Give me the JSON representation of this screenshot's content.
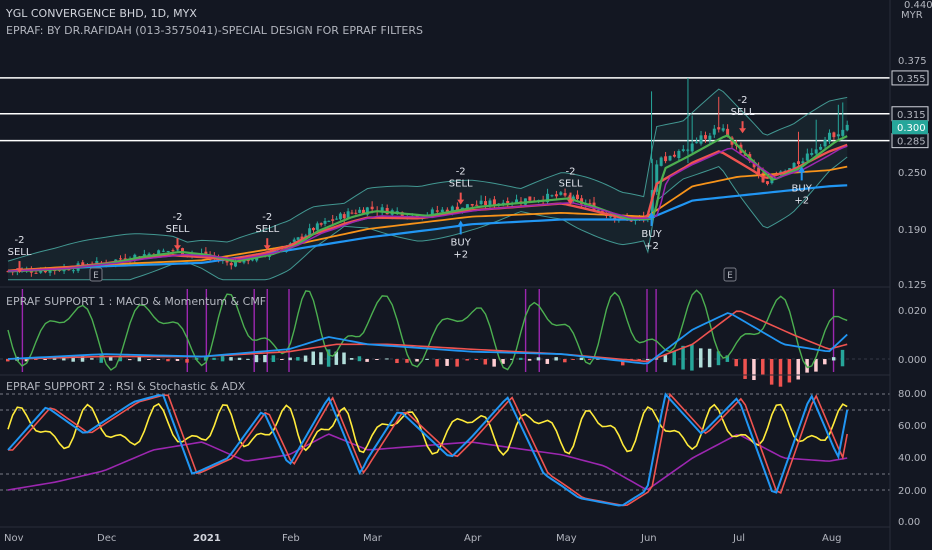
{
  "header": {
    "title": "YGL CONVERGENCE BHD, 1D, MYX",
    "indicator": "EPRAF: BY DR.RAFIDAH (013-3575041)-SPECIAL DESIGN FOR EPRAF FILTERS"
  },
  "panes": {
    "macd_title": "EPRAF SUPPORT 1 : MACD & Momentum & CMF",
    "rsi_title": "EPRAF SUPPORT 2 : RSI & Stochastic & ADX"
  },
  "price_axis": {
    "currency": "MYR",
    "top_partial": "0.440",
    "ticks": [
      "0.375",
      "0.250",
      "0.190",
      "0.125"
    ],
    "levels": [
      {
        "label": "0.355",
        "value": 0.355
      },
      {
        "label": "0.315",
        "value": 0.315
      },
      {
        "label": "0.285",
        "value": 0.285
      }
    ],
    "last_price": {
      "label": "0.300",
      "value": 0.3,
      "color": "#26a69a"
    }
  },
  "macd_axis": {
    "ticks": [
      "0.020",
      "0.000"
    ]
  },
  "rsi_axis": {
    "ticks": [
      "80.00",
      "60.00",
      "40.00",
      "20.00",
      "0.00"
    ]
  },
  "time_axis": {
    "labels": [
      {
        "text": "Nov",
        "bold": false
      },
      {
        "text": "Dec",
        "bold": false
      },
      {
        "text": "2021",
        "bold": true
      },
      {
        "text": "Feb",
        "bold": false
      },
      {
        "text": "Mar",
        "bold": false
      },
      {
        "text": "Apr",
        "bold": false
      },
      {
        "text": "May",
        "bold": false
      },
      {
        "text": "Jun",
        "bold": false
      },
      {
        "text": "Jul",
        "bold": false
      },
      {
        "text": "Aug",
        "bold": false
      }
    ]
  },
  "signals": [
    {
      "type": "sell",
      "line1": "-2",
      "line2": "SELL",
      "month_pos": 0.12,
      "price": 0.145
    },
    {
      "type": "sell",
      "line1": "-2",
      "line2": "SELL",
      "month_pos": 1.75,
      "price": 0.172
    },
    {
      "type": "sell",
      "line1": "-2",
      "line2": "SELL",
      "month_pos": 2.75,
      "price": 0.172
    },
    {
      "type": "sell",
      "line1": "-2",
      "line2": "SELL",
      "month_pos": 4.9,
      "price": 0.222
    },
    {
      "type": "sell",
      "line1": "-2",
      "line2": "SELL",
      "month_pos": 6.1,
      "price": 0.222
    },
    {
      "type": "sell",
      "line1": "-2",
      "line2": "SELL",
      "month_pos": 8.05,
      "price": 0.3
    },
    {
      "type": "buy",
      "line1": "BUY",
      "line2": "+2",
      "month_pos": 4.9,
      "price": 0.18
    },
    {
      "type": "buy",
      "line1": "BUY",
      "line2": "+2",
      "month_pos": 7.05,
      "price": 0.19
    },
    {
      "type": "buy",
      "line1": "BUY",
      "line2": "+2",
      "month_pos": 8.7,
      "price": 0.238
    }
  ],
  "earnings_markers": [
    {
      "label": "E",
      "month_pos": 1.0
    },
    {
      "label": "E",
      "month_pos": 8.0
    }
  ],
  "colors": {
    "up": "#26a69a",
    "down": "#ef5350",
    "ema_fast": "#ef5350",
    "ema_mid": "#f7931a",
    "ema_slow": "#2196f3",
    "ema_green": "#4caf50",
    "ema_purple": "#9c27b0",
    "bb": "#4db6ac",
    "rsi": "#2196f3",
    "stoch": "#ef5350",
    "adx": "#9c27b0",
    "rsi_yellow": "#ffeb3b",
    "cmf": "#4caf50",
    "mom": "#9c27b0"
  },
  "chart_data": {
    "type": "candlestick",
    "title": "YGL CONVERGENCE BHD, 1D, MYX",
    "x_range": [
      "Nov 2020",
      "Aug 2021"
    ],
    "y_range": [
      0.125,
      0.44
    ],
    "price_path": [
      [
        0.0,
        0.14
      ],
      [
        0.5,
        0.142
      ],
      [
        1.0,
        0.15
      ],
      [
        1.3,
        0.158
      ],
      [
        1.7,
        0.165
      ],
      [
        2.0,
        0.16
      ],
      [
        2.3,
        0.15
      ],
      [
        2.7,
        0.158
      ],
      [
        3.0,
        0.17
      ],
      [
        3.3,
        0.19
      ],
      [
        3.7,
        0.205
      ],
      [
        4.0,
        0.212
      ],
      [
        4.5,
        0.205
      ],
      [
        5.0,
        0.215
      ],
      [
        5.5,
        0.22
      ],
      [
        6.0,
        0.225
      ],
      [
        6.3,
        0.215
      ],
      [
        6.7,
        0.2
      ],
      [
        7.0,
        0.2
      ],
      [
        7.1,
        0.26
      ],
      [
        7.4,
        0.275
      ],
      [
        7.8,
        0.3
      ],
      [
        8.0,
        0.275
      ],
      [
        8.3,
        0.24
      ],
      [
        8.6,
        0.255
      ],
      [
        9.0,
        0.29
      ],
      [
        9.2,
        0.3
      ]
    ],
    "ema_slow_path": [
      [
        0.0,
        0.14
      ],
      [
        1.0,
        0.146
      ],
      [
        2.0,
        0.15
      ],
      [
        3.0,
        0.165
      ],
      [
        4.0,
        0.18
      ],
      [
        5.0,
        0.195
      ],
      [
        6.0,
        0.2
      ],
      [
        7.0,
        0.2
      ],
      [
        7.5,
        0.22
      ],
      [
        8.0,
        0.225
      ],
      [
        9.0,
        0.235
      ],
      [
        9.2,
        0.236
      ]
    ],
    "ema_mid_path": [
      [
        0.0,
        0.141
      ],
      [
        1.0,
        0.148
      ],
      [
        2.0,
        0.153
      ],
      [
        3.0,
        0.17
      ],
      [
        4.0,
        0.19
      ],
      [
        5.0,
        0.203
      ],
      [
        6.0,
        0.207
      ],
      [
        7.0,
        0.203
      ],
      [
        7.5,
        0.235
      ],
      [
        8.0,
        0.245
      ],
      [
        9.0,
        0.252
      ],
      [
        9.2,
        0.256
      ]
    ],
    "macd_path": [
      [
        0.0,
        0.0
      ],
      [
        1.0,
        0.002
      ],
      [
        2.0,
        0.001
      ],
      [
        3.0,
        0.004
      ],
      [
        3.5,
        0.009
      ],
      [
        4.0,
        0.006
      ],
      [
        5.0,
        0.003
      ],
      [
        6.0,
        0.002
      ],
      [
        7.0,
        -0.002
      ],
      [
        7.5,
        0.012
      ],
      [
        7.9,
        0.019
      ],
      [
        8.5,
        0.006
      ],
      [
        9.0,
        0.003
      ],
      [
        9.2,
        0.01
      ]
    ],
    "macd_signal_path": [
      [
        0.0,
        0.0
      ],
      [
        1.0,
        0.001
      ],
      [
        2.0,
        0.001
      ],
      [
        3.0,
        0.003
      ],
      [
        3.6,
        0.006
      ],
      [
        4.2,
        0.006
      ],
      [
        5.0,
        0.004
      ],
      [
        6.0,
        0.002
      ],
      [
        7.0,
        -0.001
      ],
      [
        7.5,
        0.006
      ],
      [
        8.0,
        0.02
      ],
      [
        8.6,
        0.01
      ],
      [
        9.0,
        0.004
      ],
      [
        9.2,
        0.006
      ]
    ],
    "rsi_path": [
      [
        0.0,
        45
      ],
      [
        0.4,
        72
      ],
      [
        0.8,
        55
      ],
      [
        1.3,
        75
      ],
      [
        1.6,
        80
      ],
      [
        1.9,
        30
      ],
      [
        2.3,
        40
      ],
      [
        2.7,
        70
      ],
      [
        3.0,
        35
      ],
      [
        3.5,
        78
      ],
      [
        3.9,
        30
      ],
      [
        4.3,
        70
      ],
      [
        4.8,
        40
      ],
      [
        5.4,
        78
      ],
      [
        5.8,
        30
      ],
      [
        6.2,
        15
      ],
      [
        6.7,
        10
      ],
      [
        7.0,
        20
      ],
      [
        7.2,
        80
      ],
      [
        7.6,
        55
      ],
      [
        8.0,
        78
      ],
      [
        8.4,
        15
      ],
      [
        8.8,
        80
      ],
      [
        9.1,
        40
      ],
      [
        9.2,
        70
      ]
    ],
    "adx_path": [
      [
        0.0,
        20
      ],
      [
        0.5,
        25
      ],
      [
        1.0,
        32
      ],
      [
        1.5,
        45
      ],
      [
        2.0,
        50
      ],
      [
        2.5,
        38
      ],
      [
        3.0,
        42
      ],
      [
        3.5,
        55
      ],
      [
        4.0,
        45
      ],
      [
        5.0,
        50
      ],
      [
        6.0,
        42
      ],
      [
        6.5,
        35
      ],
      [
        7.0,
        20
      ],
      [
        7.5,
        40
      ],
      [
        8.0,
        55
      ],
      [
        8.5,
        40
      ],
      [
        9.0,
        38
      ],
      [
        9.2,
        40
      ]
    ],
    "rsi_reference_lines": [
      80,
      70,
      30,
      20
    ]
  }
}
